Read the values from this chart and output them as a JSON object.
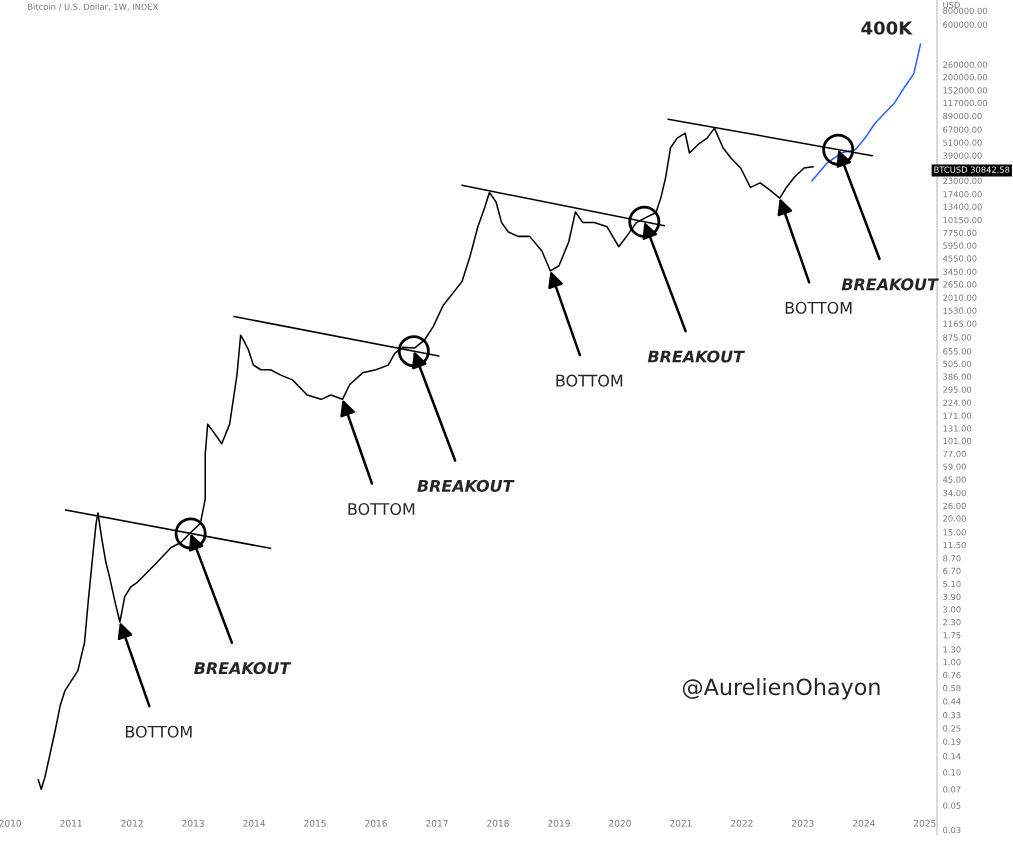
{
  "chart_data": {
    "type": "line",
    "title": "Bitcoin / U.S. Dollar, 1W, INDEX",
    "ylabel": "USD",
    "log": "y",
    "grid": false,
    "legend": false,
    "xlim": [
      2010,
      2025.2
    ],
    "ylim": [
      0.027,
      1000000
    ],
    "xticks": [
      2010,
      2011,
      2012,
      2013,
      2014,
      2015,
      2016,
      2017,
      2018,
      2019,
      2020,
      2021,
      2022,
      2023,
      2024,
      2025
    ],
    "yticks": [
      {
        "value": 800000,
        "label": "800000.00"
      },
      {
        "value": 600000,
        "label": "600000.00"
      },
      {
        "value": 260000,
        "label": "260000.00"
      },
      {
        "value": 200000,
        "label": "200000.00"
      },
      {
        "value": 152000,
        "label": "152000.00"
      },
      {
        "value": 117000,
        "label": "117000.00"
      },
      {
        "value": 89000,
        "label": "89000.00"
      },
      {
        "value": 67000,
        "label": "67000.00"
      },
      {
        "value": 51000,
        "label": "51000.00"
      },
      {
        "value": 39000,
        "label": "39000.00"
      },
      {
        "value": 23000,
        "label": "23000.00"
      },
      {
        "value": 17400,
        "label": "17400.00"
      },
      {
        "value": 13400,
        "label": "13400.00"
      },
      {
        "value": 10150,
        "label": "10150.00"
      },
      {
        "value": 7750,
        "label": "7750.00"
      },
      {
        "value": 5950,
        "label": "5950.00"
      },
      {
        "value": 4550,
        "label": "4550.00"
      },
      {
        "value": 3450,
        "label": "3450.00"
      },
      {
        "value": 2650,
        "label": "2650.00"
      },
      {
        "value": 2010,
        "label": "2010.00"
      },
      {
        "value": 1530,
        "label": "1530.00"
      },
      {
        "value": 1165,
        "label": "1165.00"
      },
      {
        "value": 875,
        "label": "875.00"
      },
      {
        "value": 655,
        "label": "655.00"
      },
      {
        "value": 505,
        "label": "505.00"
      },
      {
        "value": 386,
        "label": "386.00"
      },
      {
        "value": 295,
        "label": "295.00"
      },
      {
        "value": 224,
        "label": "224.00"
      },
      {
        "value": 171,
        "label": "171.00"
      },
      {
        "value": 131,
        "label": "131.00"
      },
      {
        "value": 101,
        "label": "101.00"
      },
      {
        "value": 77,
        "label": "77.00"
      },
      {
        "value": 59,
        "label": "59.00"
      },
      {
        "value": 45,
        "label": "45.00"
      },
      {
        "value": 34,
        "label": "34.00"
      },
      {
        "value": 26,
        "label": "26.00"
      },
      {
        "value": 20,
        "label": "20.00"
      },
      {
        "value": 15,
        "label": "15.00"
      },
      {
        "value": 11.5,
        "label": "11.50"
      },
      {
        "value": 8.7,
        "label": "8.70"
      },
      {
        "value": 6.7,
        "label": "6.70"
      },
      {
        "value": 5.1,
        "label": "5.10"
      },
      {
        "value": 3.9,
        "label": "3.90"
      },
      {
        "value": 3,
        "label": "3.00"
      },
      {
        "value": 2.3,
        "label": "2.30"
      },
      {
        "value": 1.75,
        "label": "1.75"
      },
      {
        "value": 1.3,
        "label": "1.30"
      },
      {
        "value": 1,
        "label": "1.00"
      },
      {
        "value": 0.76,
        "label": "0.76"
      },
      {
        "value": 0.58,
        "label": "0.58"
      },
      {
        "value": 0.44,
        "label": "0.44"
      },
      {
        "value": 0.33,
        "label": "0.33"
      },
      {
        "value": 0.25,
        "label": "0.25"
      },
      {
        "value": 0.19,
        "label": "0.19"
      },
      {
        "value": 0.14,
        "label": "0.14"
      },
      {
        "value": 0.1,
        "label": "0.10"
      },
      {
        "value": 0.07,
        "label": "0.07"
      },
      {
        "value": 0.05,
        "label": "0.05"
      },
      {
        "value": 0.03,
        "label": "0.03"
      }
    ],
    "series": [
      {
        "color": "#000000",
        "x": [
          2010.46,
          2010.51,
          2010.57,
          2010.67,
          2010.74,
          2010.82,
          2010.9,
          2011.0,
          2011.11,
          2011.22,
          2011.28,
          2011.36,
          2011.41,
          2011.44,
          2011.5,
          2011.57,
          2011.63,
          2011.72,
          2011.8,
          2011.88,
          2011.98,
          2012.09,
          2012.25,
          2012.41,
          2012.64,
          2012.8,
          2012.96,
          2013.12,
          2013.2,
          2013.2,
          2013.24,
          2013.36,
          2013.47,
          2013.6,
          2013.72,
          2013.78,
          2013.83,
          2013.91,
          2013.99,
          2014.11,
          2014.27,
          2014.43,
          2014.63,
          2014.87,
          2015.1,
          2015.26,
          2015.45,
          2015.57,
          2015.78,
          2016.0,
          2016.2,
          2016.31,
          2016.44,
          2016.63,
          2016.79,
          2016.94,
          2017.1,
          2017.41,
          2017.54,
          2017.67,
          2017.78,
          2017.86,
          2017.97,
          2018.06,
          2018.17,
          2018.33,
          2018.52,
          2018.72,
          2018.86,
          2019.0,
          2019.16,
          2019.27,
          2019.39,
          2019.58,
          2019.79,
          2019.98,
          2020.11,
          2020.27,
          2020.43,
          2020.59,
          2020.67,
          2020.75,
          2020.83,
          2020.94,
          2021.07,
          2021.14,
          2021.3,
          2021.43,
          2021.55,
          2021.69,
          2021.82,
          2021.98,
          2022.14,
          2022.3,
          2022.46,
          2022.62,
          2022.73,
          2022.86,
          2023.02,
          2023.17
        ],
        "values": [
          0.086,
          0.07,
          0.09,
          0.16,
          0.24,
          0.4,
          0.55,
          0.67,
          0.83,
          1.5,
          3.5,
          9.8,
          18,
          22.4,
          13.4,
          8,
          5.9,
          3.5,
          2.3,
          3.9,
          4.8,
          5.3,
          6.5,
          8,
          10.9,
          12.1,
          14.9,
          18,
          30,
          77,
          143,
          116,
          95,
          143,
          400,
          915,
          820,
          670,
          490,
          445,
          445,
          400,
          360,
          263,
          240,
          263,
          240,
          327,
          417,
          445,
          490,
          630,
          710,
          700,
          820,
          1100,
          1700,
          2800,
          4700,
          8800,
          13000,
          18000,
          14700,
          9600,
          7900,
          7200,
          7200,
          5300,
          3500,
          3900,
          6400,
          12000,
          9600,
          9600,
          8800,
          5800,
          7200,
          9600,
          10700,
          11800,
          16000,
          24700,
          45800,
          56000,
          62000,
          41000,
          50000,
          56000,
          69000,
          45800,
          37000,
          30000,
          20000,
          22000,
          18900,
          16000,
          20000,
          24700,
          30000,
          30842.58
        ]
      },
      {
        "color": "#2962ff",
        "x": [
          2023.15,
          2023.39,
          2023.63,
          2023.86,
          2024.02,
          2024.18,
          2024.34,
          2024.5,
          2024.66,
          2024.82,
          2024.93
        ],
        "values": [
          23000,
          33000,
          41000,
          44000,
          56000,
          76000,
          94000,
          116000,
          160000,
          215000,
          400000
        ],
        "value_labels": [
          null,
          null,
          null,
          null,
          null,
          null,
          null,
          null,
          null,
          null,
          "400K"
        ]
      },
      {
        "color": "#000000",
        "x": [
          2010.91,
          2014.27
        ],
        "values": [
          23.8,
          10.7
        ]
      },
      {
        "color": "#000000",
        "x": [
          2013.67,
          2017.03
        ],
        "values": [
          1352,
          593
        ]
      },
      {
        "color": "#000000",
        "x": [
          2017.41,
          2020.73
        ],
        "values": [
          20900,
          8980
        ]
      },
      {
        "color": "#000000",
        "x": [
          2020.79,
          2024.14
        ],
        "values": [
          83000,
          38800
        ]
      }
    ],
    "annotations": [
      "BTCUSD 30842.58",
      {
        "text": "BOTTOM",
        "x": 2011.8,
        "y": 2.3
      },
      {
        "text": "BREAKOUT",
        "x": 2012.96,
        "y": 14.6
      },
      {
        "text": "BOTTOM",
        "x": 2015.45,
        "y": 240
      },
      {
        "text": "BREAKOUT",
        "x": 2016.62,
        "y": 656
      },
      {
        "text": "BOTTOM",
        "x": 2018.86,
        "y": 3500
      },
      {
        "text": "BREAKOUT",
        "x": 2020.4,
        "y": 9760
      },
      {
        "text": "BOTTOM",
        "x": 2022.62,
        "y": 16000
      },
      {
        "text": "BREAKOUT",
        "x": 2023.58,
        "y": 44000
      },
      "@AurelienOhayon"
    ]
  }
}
